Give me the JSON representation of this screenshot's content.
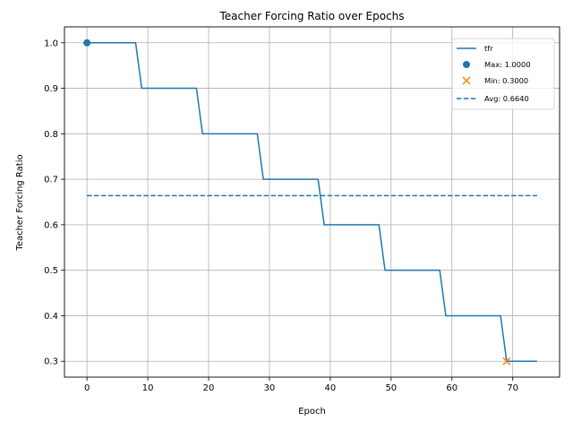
{
  "chart_data": {
    "type": "line",
    "title": "Teacher Forcing Ratio over Epochs",
    "xlabel": "Epoch",
    "ylabel": "Teacher Forcing Ratio",
    "xlim": [
      -3.7,
      77.7
    ],
    "ylim": [
      0.265,
      1.035
    ],
    "xticks": [
      0,
      10,
      20,
      30,
      40,
      50,
      60,
      70
    ],
    "yticks": [
      0.3,
      0.4,
      0.5,
      0.6,
      0.7,
      0.8,
      0.9,
      1.0
    ],
    "ytick_labels": [
      "0.3",
      "0.4",
      "0.5",
      "0.6",
      "0.7",
      "0.8",
      "0.9",
      "1.0"
    ],
    "grid": true,
    "legend_position": "top-right",
    "series": [
      {
        "name": "tfr",
        "color": "#1f77b4",
        "style": "solid",
        "x": [
          0,
          1,
          2,
          3,
          4,
          5,
          6,
          7,
          8,
          9,
          10,
          11,
          12,
          13,
          14,
          15,
          16,
          17,
          18,
          19,
          20,
          21,
          22,
          23,
          24,
          25,
          26,
          27,
          28,
          29,
          30,
          31,
          32,
          33,
          34,
          35,
          36,
          37,
          38,
          39,
          40,
          41,
          42,
          43,
          44,
          45,
          46,
          47,
          48,
          49,
          50,
          51,
          52,
          53,
          54,
          55,
          56,
          57,
          58,
          59,
          60,
          61,
          62,
          63,
          64,
          65,
          66,
          67,
          68,
          69,
          70,
          71,
          72,
          73,
          74
        ],
        "values": [
          1.0,
          1.0,
          1.0,
          1.0,
          1.0,
          1.0,
          1.0,
          1.0,
          1.0,
          0.9,
          0.9,
          0.9,
          0.9,
          0.9,
          0.9,
          0.9,
          0.9,
          0.9,
          0.9,
          0.8,
          0.8,
          0.8,
          0.8,
          0.8,
          0.8,
          0.8,
          0.8,
          0.8,
          0.8,
          0.7,
          0.7,
          0.7,
          0.7,
          0.7,
          0.7,
          0.7,
          0.7,
          0.7,
          0.7,
          0.6,
          0.6,
          0.6,
          0.6,
          0.6,
          0.6,
          0.6,
          0.6,
          0.6,
          0.6,
          0.5,
          0.5,
          0.5,
          0.5,
          0.5,
          0.5,
          0.5,
          0.5,
          0.5,
          0.5,
          0.4,
          0.4,
          0.4,
          0.4,
          0.4,
          0.4,
          0.4,
          0.4,
          0.4,
          0.4,
          0.3,
          0.3,
          0.3,
          0.3,
          0.3,
          0.3
        ]
      }
    ],
    "markers": [
      {
        "name": "Max: 1.0000",
        "x": 0,
        "y": 1.0,
        "marker": "circle",
        "color": "#1f77b4"
      },
      {
        "name": "Min: 0.3000",
        "x": 69,
        "y": 0.3,
        "marker": "x",
        "color": "#ff7f0e"
      }
    ],
    "reference_lines": [
      {
        "name": "Avg: 0.6640",
        "y": 0.664,
        "x_from": 0,
        "x_to": 74,
        "style": "dashed",
        "color": "#1f77b4"
      }
    ]
  }
}
